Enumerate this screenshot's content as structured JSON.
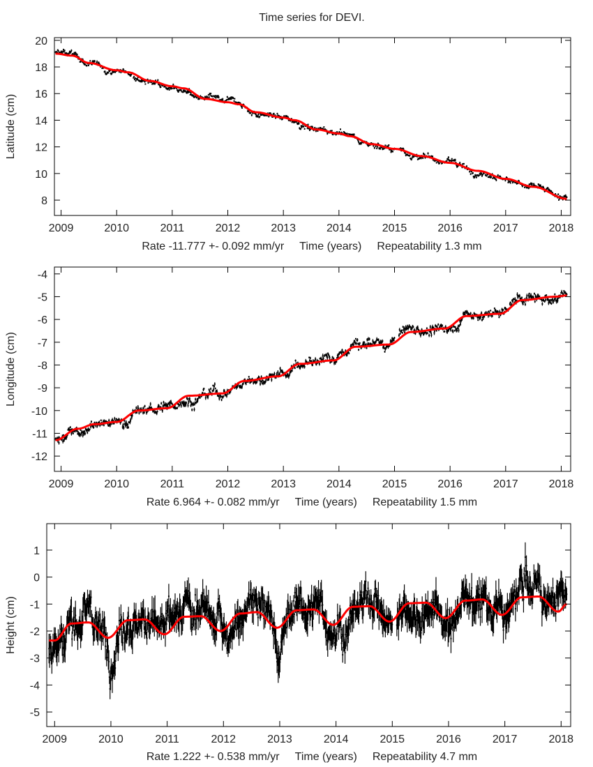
{
  "title": "Time series for DEVI.",
  "chart_data": [
    {
      "type": "scatter",
      "ylabel": "Latitude (cm)",
      "xlabel": "Time (years)",
      "rate": "Rate -11.777 +- 0.092 mm/yr",
      "repeatability": "Repeatability 1.3 mm",
      "xlim": [
        2008.88,
        2018.17
      ],
      "ylim": [
        6.85,
        20.2
      ],
      "xticks": [
        2009,
        2010,
        2011,
        2012,
        2013,
        2014,
        2015,
        2016,
        2017,
        2018
      ],
      "yticks": [
        8,
        10,
        12,
        14,
        16,
        18,
        20
      ],
      "grid": false,
      "series_colors": {
        "data": "#000000",
        "fit": "#ff0000"
      },
      "fit": {
        "x": [
          2008.9,
          2009.2,
          2009.5,
          2010,
          2010.2,
          2010.6,
          2011,
          2011.2,
          2011.6,
          2012,
          2012.2,
          2012.5,
          2013,
          2013.2,
          2013.6,
          2014,
          2014.2,
          2014.6,
          2015,
          2015.5,
          2016,
          2016.5,
          2017,
          2017.5,
          2018.1
        ],
        "y": [
          19.0,
          18.85,
          18.3,
          17.75,
          17.6,
          16.95,
          16.55,
          16.4,
          15.6,
          15.35,
          15.2,
          14.6,
          14.2,
          14.0,
          13.3,
          13.0,
          12.8,
          12.2,
          11.85,
          11.3,
          10.8,
          10.2,
          9.6,
          9.0,
          8.1
        ]
      }
    },
    {
      "type": "scatter",
      "ylabel": "Longitude (cm)",
      "xlabel": "Time (years)",
      "rate": "Rate 6.964 +- 0.082 mm/yr",
      "repeatability": "Repeatability 1.5 mm",
      "xlim": [
        2008.88,
        2018.17
      ],
      "ylim": [
        -12.67,
        -3.7
      ],
      "xticks": [
        2009,
        2010,
        2011,
        2012,
        2013,
        2014,
        2015,
        2016,
        2017,
        2018
      ],
      "yticks": [
        -12,
        -11,
        -10,
        -9,
        -8,
        -7,
        -6,
        -5,
        -4
      ],
      "grid": false,
      "series_colors": {
        "data": "#000000",
        "fit": "#ff0000"
      },
      "fit": {
        "x": [
          2008.9,
          2009.3,
          2009.6,
          2010,
          2010.4,
          2010.9,
          2011.3,
          2011.9,
          2012.3,
          2012.9,
          2013.3,
          2013.9,
          2014.3,
          2014.9,
          2015.3,
          2015.9,
          2016.3,
          2016.9,
          2017.3,
          2017.9,
          2018.1
        ],
        "y": [
          -11.3,
          -10.8,
          -10.6,
          -10.5,
          -10.0,
          -9.9,
          -9.35,
          -9.25,
          -8.7,
          -8.5,
          -7.95,
          -7.8,
          -7.2,
          -7.1,
          -6.55,
          -6.4,
          -5.85,
          -5.75,
          -5.15,
          -5.0,
          -4.95
        ]
      }
    },
    {
      "type": "scatter",
      "ylabel": "Height (cm)",
      "xlabel": "Time (years)",
      "rate": "Rate 1.222 +- 0.538 mm/yr",
      "repeatability": "Repeatability 4.7 mm",
      "xlim": [
        2008.86,
        2018.17
      ],
      "ylim": [
        -5.54,
        1.98
      ],
      "xticks": [
        2009,
        2010,
        2011,
        2012,
        2013,
        2014,
        2015,
        2016,
        2017,
        2018
      ],
      "yticks": [
        -5,
        -4,
        -3,
        -2,
        -1,
        0,
        1
      ],
      "grid": false,
      "series_colors": {
        "data": "#000000",
        "fit": "#ff0000"
      },
      "fit": {
        "x": [
          2008.9,
          2009.0,
          2009.3,
          2009.6,
          2009.95,
          2010.3,
          2010.6,
          2010.95,
          2011.3,
          2011.6,
          2011.95,
          2012.3,
          2012.6,
          2012.95,
          2013.3,
          2013.6,
          2013.95,
          2014.3,
          2014.6,
          2014.95,
          2015.3,
          2015.6,
          2015.95,
          2016.3,
          2016.6,
          2016.95,
          2017.3,
          2017.6,
          2017.95,
          2018.1
        ],
        "y": [
          -2.35,
          -2.35,
          -1.72,
          -1.68,
          -2.25,
          -1.6,
          -1.57,
          -2.12,
          -1.47,
          -1.45,
          -2.0,
          -1.35,
          -1.3,
          -1.88,
          -1.23,
          -1.2,
          -1.77,
          -1.1,
          -1.08,
          -1.65,
          -0.97,
          -0.95,
          -1.52,
          -0.87,
          -0.83,
          -1.4,
          -0.75,
          -0.72,
          -1.28,
          -1.0
        ]
      }
    }
  ]
}
